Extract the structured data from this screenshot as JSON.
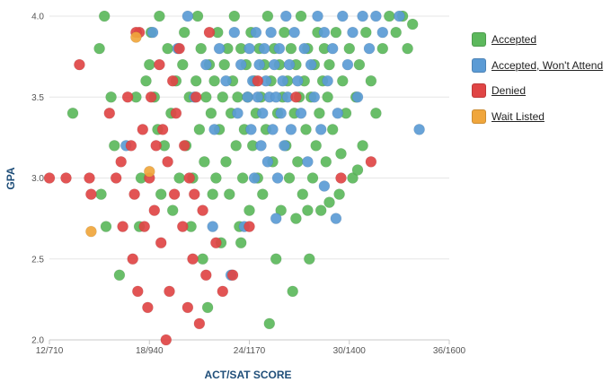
{
  "chart_data": {
    "type": "scatter",
    "title": "",
    "xlabel": "ACT/SAT SCORE",
    "ylabel": "GPA",
    "xlim": [
      12,
      36
    ],
    "ylim": [
      2.0,
      4.0
    ],
    "x_ticks": [
      {
        "value": 12,
        "label": "12/710"
      },
      {
        "value": 18,
        "label": "18/940"
      },
      {
        "value": 24,
        "label": "24/1170"
      },
      {
        "value": 30,
        "label": "30/1400"
      },
      {
        "value": 36,
        "label": "36/1600"
      }
    ],
    "y_ticks": [
      {
        "value": 2.0,
        "label": "2.0"
      },
      {
        "value": 2.5,
        "label": "2.5"
      },
      {
        "value": 3.0,
        "label": "3.0"
      },
      {
        "value": 3.5,
        "label": "3.5"
      },
      {
        "value": 4.0,
        "label": "4.0"
      }
    ],
    "grid": "horizontal",
    "legend_position": "right",
    "series": [
      {
        "name": "Accepted",
        "color": "#5cb85c",
        "points": [
          [
            15.3,
            4.0
          ],
          [
            15.0,
            3.8
          ],
          [
            13.4,
            3.4
          ],
          [
            15.1,
            2.9
          ],
          [
            15.4,
            2.7
          ],
          [
            15.7,
            3.5
          ],
          [
            15.9,
            3.2
          ],
          [
            16.2,
            2.4
          ],
          [
            17.2,
            3.5
          ],
          [
            17.4,
            2.7
          ],
          [
            17.5,
            3.0
          ],
          [
            17.8,
            3.6
          ],
          [
            18.0,
            3.7
          ],
          [
            18.1,
            3.9
          ],
          [
            18.3,
            3.5
          ],
          [
            18.5,
            3.3
          ],
          [
            18.6,
            4.0
          ],
          [
            18.7,
            2.9
          ],
          [
            18.9,
            3.2
          ],
          [
            19.1,
            3.8
          ],
          [
            19.3,
            3.4
          ],
          [
            19.4,
            2.8
          ],
          [
            19.6,
            3.6
          ],
          [
            19.8,
            3.0
          ],
          [
            20.0,
            3.7
          ],
          [
            20.1,
            3.9
          ],
          [
            20.2,
            3.2
          ],
          [
            20.4,
            3.5
          ],
          [
            20.5,
            2.7
          ],
          [
            20.6,
            3.0
          ],
          [
            20.8,
            3.6
          ],
          [
            20.9,
            4.0
          ],
          [
            21.0,
            3.3
          ],
          [
            21.1,
            3.8
          ],
          [
            21.2,
            2.5
          ],
          [
            21.3,
            3.1
          ],
          [
            21.4,
            3.5
          ],
          [
            21.5,
            2.2
          ],
          [
            21.6,
            3.7
          ],
          [
            21.7,
            3.4
          ],
          [
            21.8,
            2.9
          ],
          [
            21.9,
            3.6
          ],
          [
            22.0,
            3.0
          ],
          [
            22.1,
            3.9
          ],
          [
            22.2,
            3.3
          ],
          [
            22.3,
            2.6
          ],
          [
            22.4,
            3.5
          ],
          [
            22.5,
            3.7
          ],
          [
            22.6,
            3.1
          ],
          [
            22.7,
            3.8
          ],
          [
            22.8,
            2.9
          ],
          [
            22.9,
            3.4
          ],
          [
            23.0,
            3.6
          ],
          [
            23.1,
            4.0
          ],
          [
            23.2,
            3.2
          ],
          [
            23.3,
            3.5
          ],
          [
            23.4,
            2.7
          ],
          [
            23.5,
            3.8
          ],
          [
            23.6,
            3.0
          ],
          [
            23.7,
            3.3
          ],
          [
            23.8,
            3.7
          ],
          [
            23.9,
            3.5
          ],
          [
            24.0,
            2.8
          ],
          [
            24.1,
            3.9
          ],
          [
            24.2,
            3.2
          ],
          [
            24.3,
            3.6
          ],
          [
            24.4,
            3.4
          ],
          [
            24.5,
            3.0
          ],
          [
            24.6,
            3.8
          ],
          [
            24.7,
            3.5
          ],
          [
            24.8,
            2.9
          ],
          [
            24.9,
            3.7
          ],
          [
            25.0,
            3.3
          ],
          [
            25.1,
            4.0
          ],
          [
            25.2,
            2.1
          ],
          [
            25.3,
            3.6
          ],
          [
            25.4,
            3.1
          ],
          [
            25.5,
            3.8
          ],
          [
            25.6,
            2.5
          ],
          [
            25.7,
            3.4
          ],
          [
            25.8,
            3.7
          ],
          [
            25.9,
            2.8
          ],
          [
            26.0,
            3.5
          ],
          [
            26.1,
            3.9
          ],
          [
            26.2,
            3.2
          ],
          [
            26.3,
            3.6
          ],
          [
            26.4,
            3.0
          ],
          [
            26.5,
            3.8
          ],
          [
            26.6,
            2.3
          ],
          [
            26.7,
            3.4
          ],
          [
            26.8,
            3.7
          ],
          [
            26.9,
            3.1
          ],
          [
            27.0,
            3.5
          ],
          [
            27.1,
            4.0
          ],
          [
            27.2,
            2.9
          ],
          [
            27.3,
            3.6
          ],
          [
            27.4,
            3.3
          ],
          [
            27.5,
            3.8
          ],
          [
            27.6,
            2.5
          ],
          [
            27.7,
            3.5
          ],
          [
            27.8,
            3.0
          ],
          [
            27.9,
            3.7
          ],
          [
            28.0,
            3.2
          ],
          [
            28.1,
            3.9
          ],
          [
            28.2,
            3.4
          ],
          [
            28.3,
            2.8
          ],
          [
            28.4,
            3.6
          ],
          [
            28.5,
            3.8
          ],
          [
            28.6,
            3.1
          ],
          [
            28.7,
            3.5
          ],
          [
            28.8,
            3.7
          ],
          [
            29.0,
            3.3
          ],
          [
            29.2,
            3.9
          ],
          [
            29.4,
            2.9
          ],
          [
            29.6,
            3.6
          ],
          [
            29.8,
            3.4
          ],
          [
            30.0,
            3.8
          ],
          [
            30.2,
            3.0
          ],
          [
            30.4,
            3.5
          ],
          [
            30.6,
            3.7
          ],
          [
            30.8,
            3.2
          ],
          [
            31.0,
            3.9
          ],
          [
            31.3,
            3.6
          ],
          [
            31.6,
            3.4
          ],
          [
            32.0,
            3.8
          ],
          [
            32.4,
            4.0
          ],
          [
            32.8,
            3.9
          ],
          [
            33.2,
            4.0
          ],
          [
            33.5,
            3.8
          ],
          [
            33.8,
            3.95
          ],
          [
            30.5,
            3.05
          ],
          [
            29.5,
            3.15
          ],
          [
            28.8,
            2.85
          ],
          [
            27.5,
            2.8
          ],
          [
            26.8,
            2.75
          ],
          [
            23.5,
            2.6
          ]
        ]
      },
      {
        "name": "Accepted, Won't Attend",
        "color": "#5b9bd5",
        "points": [
          [
            16.6,
            3.2
          ],
          [
            18.2,
            3.9
          ],
          [
            19.7,
            3.8
          ],
          [
            20.3,
            4.0
          ],
          [
            20.7,
            3.5
          ],
          [
            21.4,
            3.7
          ],
          [
            21.9,
            3.3
          ],
          [
            22.2,
            3.8
          ],
          [
            22.6,
            3.6
          ],
          [
            22.9,
            2.4
          ],
          [
            23.1,
            3.9
          ],
          [
            23.3,
            3.4
          ],
          [
            23.5,
            3.7
          ],
          [
            23.7,
            2.7
          ],
          [
            23.9,
            3.5
          ],
          [
            24.0,
            3.8
          ],
          [
            24.1,
            3.3
          ],
          [
            24.2,
            3.6
          ],
          [
            24.3,
            3.0
          ],
          [
            24.4,
            3.9
          ],
          [
            24.5,
            3.5
          ],
          [
            24.6,
            3.7
          ],
          [
            24.7,
            3.2
          ],
          [
            24.8,
            3.4
          ],
          [
            24.9,
            3.8
          ],
          [
            25.0,
            3.6
          ],
          [
            25.1,
            3.1
          ],
          [
            25.2,
            3.5
          ],
          [
            25.3,
            3.9
          ],
          [
            25.4,
            3.3
          ],
          [
            25.5,
            3.7
          ],
          [
            25.6,
            3.5
          ],
          [
            25.7,
            3.0
          ],
          [
            25.8,
            3.8
          ],
          [
            25.9,
            3.4
          ],
          [
            26.0,
            3.6
          ],
          [
            26.1,
            3.2
          ],
          [
            26.2,
            4.0
          ],
          [
            26.3,
            3.5
          ],
          [
            26.4,
            3.7
          ],
          [
            26.5,
            3.3
          ],
          [
            26.7,
            3.9
          ],
          [
            26.9,
            3.6
          ],
          [
            27.1,
            3.4
          ],
          [
            27.3,
            3.8
          ],
          [
            27.5,
            3.1
          ],
          [
            27.7,
            3.7
          ],
          [
            27.9,
            3.5
          ],
          [
            28.1,
            4.0
          ],
          [
            28.3,
            3.3
          ],
          [
            28.5,
            3.9
          ],
          [
            28.7,
            3.6
          ],
          [
            29.0,
            3.8
          ],
          [
            29.3,
            3.4
          ],
          [
            29.6,
            4.0
          ],
          [
            29.9,
            3.7
          ],
          [
            30.2,
            3.9
          ],
          [
            30.5,
            3.5
          ],
          [
            30.8,
            4.0
          ],
          [
            31.2,
            3.8
          ],
          [
            31.6,
            4.0
          ],
          [
            32.0,
            3.9
          ],
          [
            33.0,
            4.0
          ],
          [
            34.2,
            3.3
          ],
          [
            29.2,
            2.75
          ],
          [
            28.5,
            2.95
          ],
          [
            25.6,
            2.75
          ],
          [
            21.8,
            2.7
          ]
        ]
      },
      {
        "name": "Denied",
        "color": "#e04545",
        "points": [
          [
            12.0,
            3.0
          ],
          [
            13.0,
            3.0
          ],
          [
            13.8,
            3.7
          ],
          [
            14.4,
            3.0
          ],
          [
            14.5,
            2.9
          ],
          [
            15.6,
            3.4
          ],
          [
            16.0,
            3.0
          ],
          [
            16.3,
            3.1
          ],
          [
            16.4,
            2.7
          ],
          [
            16.7,
            3.5
          ],
          [
            16.9,
            3.2
          ],
          [
            17.0,
            2.5
          ],
          [
            17.1,
            2.9
          ],
          [
            17.3,
            2.3
          ],
          [
            17.4,
            3.9
          ],
          [
            17.6,
            3.3
          ],
          [
            17.7,
            2.7
          ],
          [
            17.9,
            2.2
          ],
          [
            18.0,
            3.0
          ],
          [
            18.1,
            3.5
          ],
          [
            18.3,
            2.8
          ],
          [
            18.4,
            3.2
          ],
          [
            18.6,
            3.7
          ],
          [
            18.7,
            2.6
          ],
          [
            18.8,
            3.3
          ],
          [
            19.0,
            2.0
          ],
          [
            19.1,
            3.1
          ],
          [
            19.2,
            2.3
          ],
          [
            19.4,
            3.6
          ],
          [
            19.5,
            2.9
          ],
          [
            19.6,
            3.4
          ],
          [
            19.8,
            3.8
          ],
          [
            20.0,
            2.7
          ],
          [
            20.1,
            3.2
          ],
          [
            20.3,
            2.2
          ],
          [
            20.4,
            3.0
          ],
          [
            20.6,
            2.5
          ],
          [
            20.8,
            3.5
          ],
          [
            21.0,
            2.1
          ],
          [
            21.2,
            2.8
          ],
          [
            21.4,
            2.4
          ],
          [
            21.6,
            3.9
          ],
          [
            22.0,
            2.6
          ],
          [
            22.4,
            2.3
          ],
          [
            23.0,
            2.4
          ],
          [
            24.0,
            2.7
          ],
          [
            24.5,
            3.6
          ],
          [
            26.8,
            3.5
          ],
          [
            29.5,
            3.0
          ],
          [
            31.3,
            3.1
          ],
          [
            17.2,
            3.9
          ],
          [
            20.7,
            2.9
          ]
        ]
      },
      {
        "name": "Wait Listed",
        "color": "#f0a63c",
        "points": [
          [
            14.5,
            2.67
          ],
          [
            17.2,
            3.87
          ],
          [
            18.0,
            3.04
          ]
        ]
      }
    ]
  }
}
